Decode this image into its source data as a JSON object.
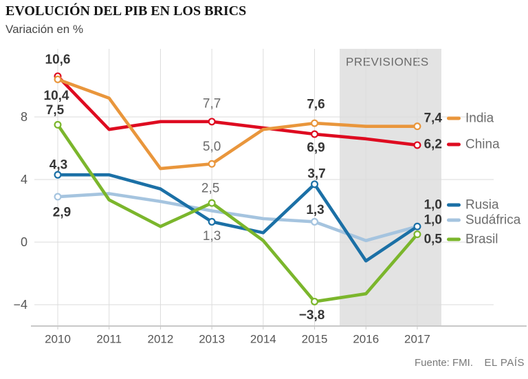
{
  "header": {
    "title": "EVOLUCIÓN DEL PIB EN LOS BRICS",
    "subtitle": "Variación en %"
  },
  "forecast": {
    "label": "PREVISIONES",
    "years": [
      2016,
      2017
    ]
  },
  "footer": {
    "source": "Fuente: FMI.",
    "brand": "EL PAÍS"
  },
  "colors": {
    "india": "#E9963C",
    "china": "#DE0B20",
    "rusia": "#1B70A6",
    "sudafrica": "#A5C4DF",
    "brasil": "#7BB62C",
    "forecast_band": "#E3E3E3",
    "muted_label": "#6B6B6B",
    "bold_label": "#363636",
    "axis_label": "#565656",
    "grid_h": "#DBDBDB",
    "grid_v": "#DCDCDC",
    "baseline": "#C8C8C8"
  },
  "chart_data": {
    "type": "line",
    "x": [
      2010,
      2011,
      2012,
      2013,
      2014,
      2015,
      2016,
      2017
    ],
    "x_tick_labels": [
      "2010",
      "2011",
      "2012",
      "2013",
      "2014",
      "2015",
      "2016",
      "2017"
    ],
    "y_ticks": [
      8,
      4,
      0,
      -4
    ],
    "y_tick_labels": [
      "8",
      "4",
      "0",
      "−4"
    ],
    "ylim": [
      -5.4,
      12.4
    ],
    "grid": true,
    "legend_position": "right",
    "series": [
      {
        "name": "Sudáfrica",
        "color_key": "sudafrica",
        "values": [
          2.9,
          3.1,
          2.6,
          2.0,
          1.5,
          1.3,
          0.1,
          1.0
        ],
        "marker_years": [
          2010,
          2015,
          2017
        ],
        "point_labels": [
          {
            "year": 2010,
            "text": "2,9",
            "emphasis": "bold"
          },
          {
            "year": 2015,
            "text": "1,3",
            "emphasis": "bold"
          }
        ]
      },
      {
        "name": "Rusia",
        "color_key": "rusia",
        "values": [
          4.3,
          4.3,
          3.4,
          1.3,
          0.6,
          3.7,
          -1.2,
          1.0
        ],
        "marker_years": [
          2010,
          2013,
          2015,
          2017
        ],
        "point_labels": [
          {
            "year": 2010,
            "text": "4,3",
            "emphasis": "bold"
          },
          {
            "year": 2013,
            "text": "1,3",
            "emphasis": "muted"
          },
          {
            "year": 2015,
            "text": "3,7",
            "emphasis": "bold"
          }
        ]
      },
      {
        "name": "Brasil",
        "color_key": "brasil",
        "values": [
          7.5,
          2.7,
          1.0,
          2.5,
          0.1,
          -3.8,
          -3.3,
          0.5
        ],
        "marker_years": [
          2010,
          2013,
          2015,
          2017
        ],
        "point_labels": [
          {
            "year": 2010,
            "text": "7,5",
            "emphasis": "bold"
          },
          {
            "year": 2013,
            "text": "2,5",
            "emphasis": "muted"
          },
          {
            "year": 2015,
            "text": "−3,8",
            "emphasis": "bold"
          }
        ]
      },
      {
        "name": "China",
        "color_key": "china",
        "values": [
          10.6,
          7.2,
          7.7,
          7.7,
          7.3,
          6.9,
          6.6,
          6.2
        ],
        "marker_years": [
          2010,
          2013,
          2015,
          2017
        ],
        "point_labels": [
          {
            "year": 2010,
            "text": "10,6",
            "emphasis": "bold"
          },
          {
            "year": 2013,
            "text": "7,7",
            "emphasis": "muted"
          },
          {
            "year": 2015,
            "text": "6,9",
            "emphasis": "bold"
          }
        ]
      },
      {
        "name": "India",
        "color_key": "india",
        "values": [
          10.4,
          9.2,
          4.7,
          5.0,
          7.2,
          7.6,
          7.4,
          7.4
        ],
        "marker_years": [
          2010,
          2013,
          2015,
          2017
        ],
        "point_labels": [
          {
            "year": 2010,
            "text": "10,4",
            "emphasis": "bold"
          },
          {
            "year": 2013,
            "text": "5,0",
            "emphasis": "muted"
          },
          {
            "year": 2015,
            "text": "7,6",
            "emphasis": "bold"
          }
        ]
      }
    ],
    "legend": [
      {
        "series": "India",
        "value_label": "7,4",
        "label": "India"
      },
      {
        "series": "China",
        "value_label": "6,2",
        "label": "China"
      },
      {
        "series": "Rusia",
        "value_label": "1,0",
        "label": "Rusia"
      },
      {
        "series": "Sudáfrica",
        "value_label": "1,0",
        "label": "Sudáfrica"
      },
      {
        "series": "Brasil",
        "value_label": "0,5",
        "label": "Brasil"
      }
    ]
  }
}
